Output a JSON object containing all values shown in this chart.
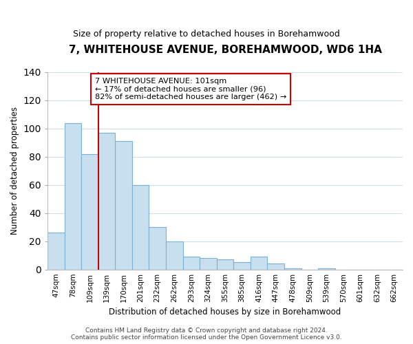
{
  "title": "7, WHITEHOUSE AVENUE, BOREHAMWOOD, WD6 1HA",
  "subtitle": "Size of property relative to detached houses in Borehamwood",
  "xlabel": "Distribution of detached houses by size in Borehamwood",
  "ylabel": "Number of detached properties",
  "bar_labels": [
    "47sqm",
    "78sqm",
    "109sqm",
    "139sqm",
    "170sqm",
    "201sqm",
    "232sqm",
    "262sqm",
    "293sqm",
    "324sqm",
    "355sqm",
    "385sqm",
    "416sqm",
    "447sqm",
    "478sqm",
    "509sqm",
    "539sqm",
    "570sqm",
    "601sqm",
    "632sqm",
    "662sqm"
  ],
  "bar_values": [
    26,
    104,
    82,
    97,
    91,
    60,
    30,
    20,
    9,
    8,
    7,
    5,
    9,
    4,
    1,
    0,
    1,
    0,
    0,
    0,
    0
  ],
  "bar_color": "#c8dff0",
  "bar_edge_color": "#7ab0d4",
  "ylim": [
    0,
    140
  ],
  "yticks": [
    0,
    20,
    40,
    60,
    80,
    100,
    120,
    140
  ],
  "property_line_x": 2.5,
  "property_line_color": "#cc0000",
  "annotation_title": "7 WHITEHOUSE AVENUE: 101sqm",
  "annotation_line1": "← 17% of detached houses are smaller (96)",
  "annotation_line2": "82% of semi-detached houses are larger (462) →",
  "annotation_box_color": "#ffffff",
  "annotation_box_edge": "#cc0000",
  "footer_line1": "Contains HM Land Registry data © Crown copyright and database right 2024.",
  "footer_line2": "Contains public sector information licensed under the Open Government Licence v3.0.",
  "background_color": "#ffffff",
  "grid_color": "#d0dde8"
}
